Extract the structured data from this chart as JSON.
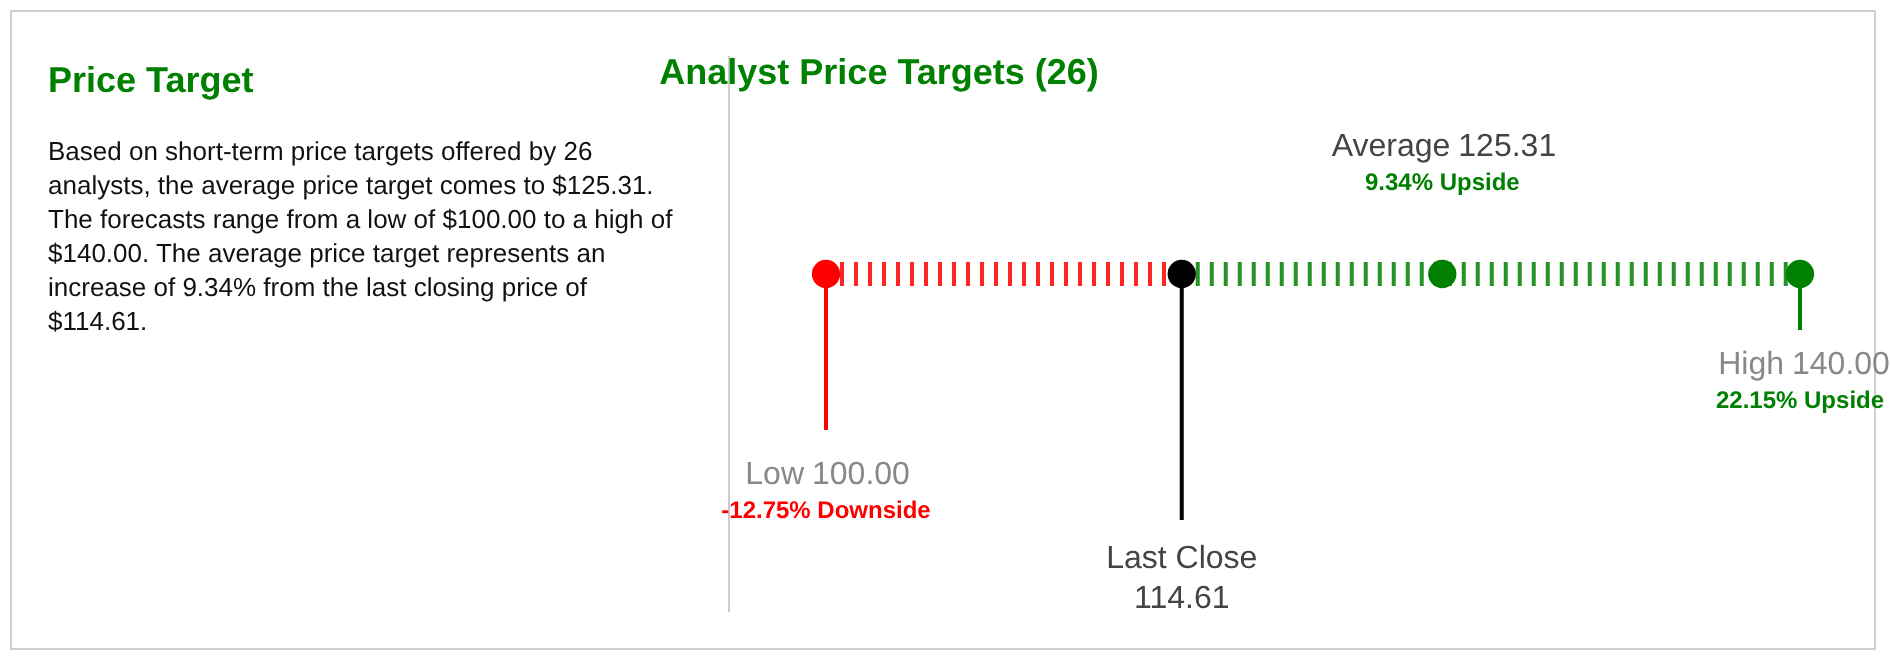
{
  "chart_data": [
    {
      "type": "other",
      "title": "Price Target",
      "annotations": [
        "Based on short-term price targets offered by 26 analysts, the average price target comes to $125.31. The forecasts range from a low of $100.00 to a high of $140.00. The average price target represents an increase of 9.34% from the last closing price of $114.61."
      ]
    },
    {
      "type": "other",
      "title": "Analyst Price Targets (26)",
      "categories": [
        "Low",
        "Last Close",
        "Average",
        "High"
      ],
      "values": [
        100,
        114.61,
        125.31,
        140
      ],
      "colors": [
        "#ff0000",
        "#000000",
        "#008000",
        "#008000"
      ],
      "value_labels": [
        "100.00",
        "114.61",
        "125.31",
        "140.00"
      ],
      "annotations": [
        "-12.75% Downside",
        "9.34% Upside",
        "22.15% Upside"
      ]
    }
  ]
}
